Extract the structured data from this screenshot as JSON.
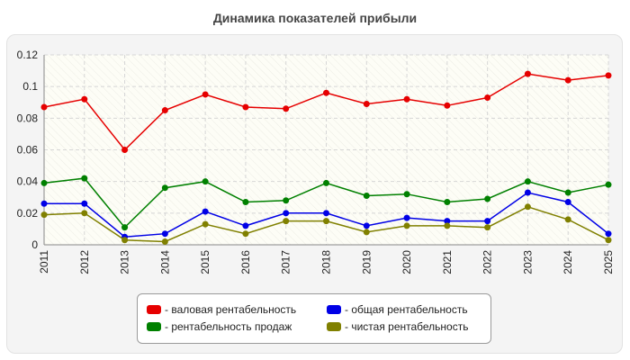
{
  "chart_data": {
    "type": "line",
    "title": "Динамика показателей прибыли",
    "xlabel": "",
    "ylabel": "",
    "x": [
      "2011",
      "2012",
      "2013",
      "2014",
      "2015",
      "2016",
      "2017",
      "2018",
      "2019",
      "2020",
      "2021",
      "2022",
      "2023",
      "2024",
      "2025"
    ],
    "ylim": [
      0,
      0.12
    ],
    "yticks": [
      "0",
      "0.02",
      "0.04",
      "0.06",
      "0.08",
      "0.1",
      "0.12"
    ],
    "grid": true,
    "legend_position": "bottom",
    "series": [
      {
        "name": "- валовая рентабельность",
        "color": "#e60000",
        "values": [
          0.087,
          0.092,
          0.06,
          0.085,
          0.095,
          0.087,
          0.086,
          0.096,
          0.089,
          0.092,
          0.088,
          0.093,
          0.108,
          0.104,
          0.107
        ]
      },
      {
        "name": "- рентабельность продаж",
        "color": "#008000",
        "values": [
          0.039,
          0.042,
          0.011,
          0.036,
          0.04,
          0.027,
          0.028,
          0.039,
          0.031,
          0.032,
          0.027,
          0.029,
          0.04,
          0.033,
          0.038
        ]
      },
      {
        "name": "- общая рентабельность",
        "color": "#0000e6",
        "values": [
          0.026,
          0.026,
          0.005,
          0.007,
          0.021,
          0.012,
          0.02,
          0.02,
          0.012,
          0.017,
          0.015,
          0.015,
          0.033,
          0.027,
          0.007
        ]
      },
      {
        "name": "- чистая рентабельность",
        "color": "#808000",
        "values": [
          0.019,
          0.02,
          0.003,
          0.002,
          0.013,
          0.007,
          0.015,
          0.015,
          0.008,
          0.012,
          0.012,
          0.011,
          0.024,
          0.016,
          0.003
        ]
      }
    ]
  }
}
